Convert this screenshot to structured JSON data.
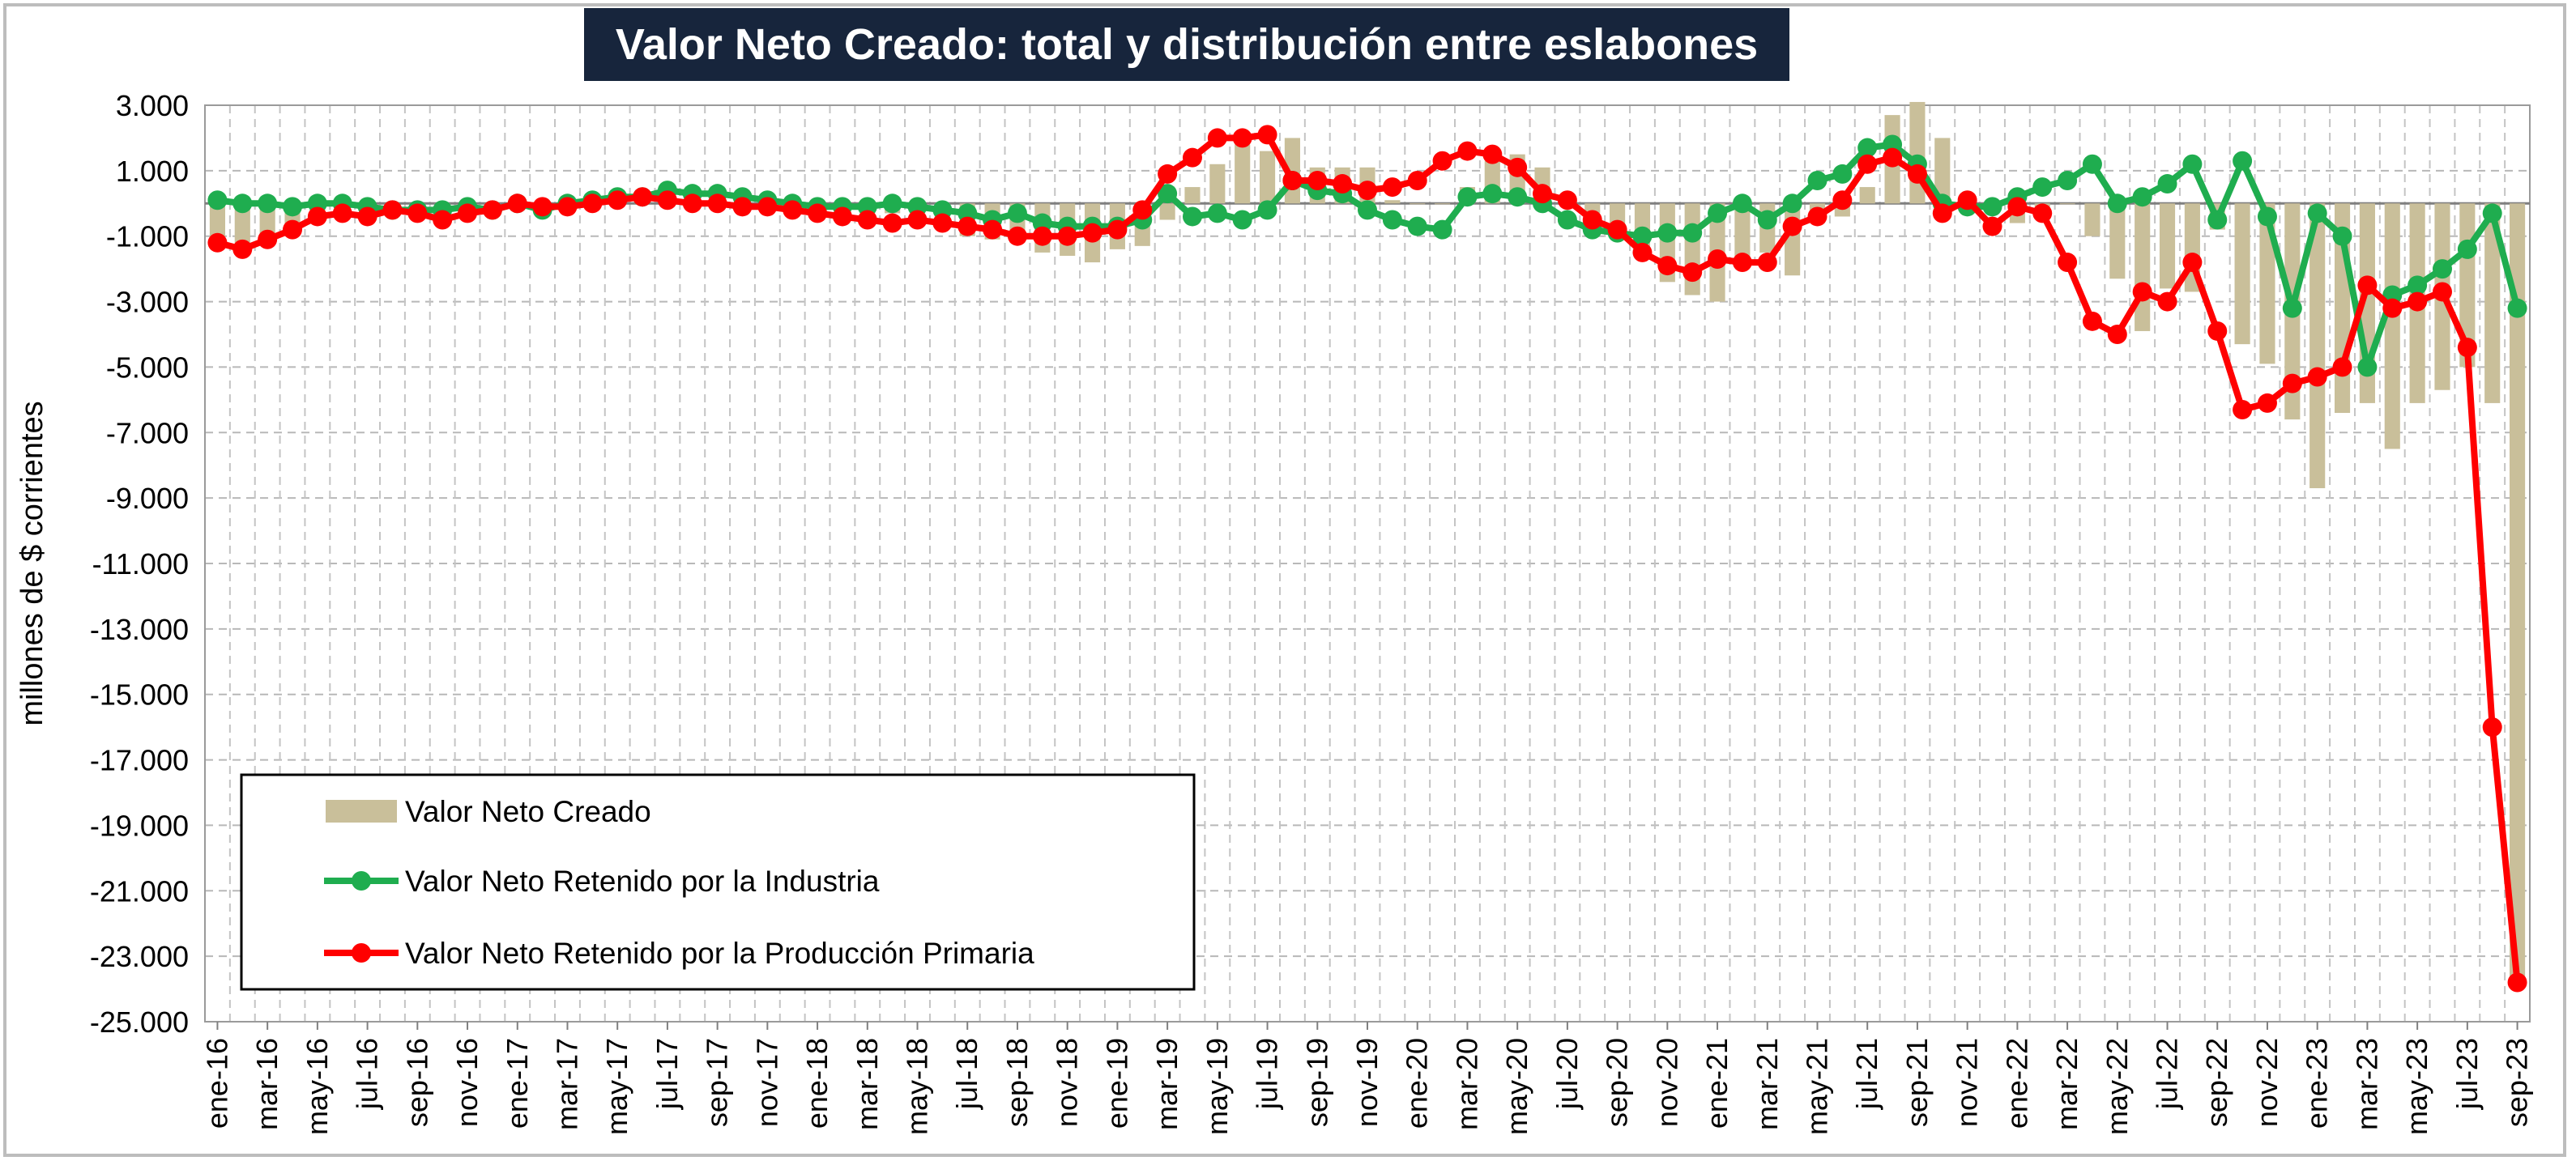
{
  "chart_data": {
    "type": "bar+line",
    "title": "Valor Neto Creado: total y distribución entre eslabones",
    "ylabel": "millones de $ corrientes",
    "ylim": [
      -25000,
      3000
    ],
    "yticks": [
      3000,
      1000,
      -1000,
      -3000,
      -5000,
      -7000,
      -9000,
      -11000,
      -13000,
      -15000,
      -17000,
      -19000,
      -21000,
      -23000,
      -25000
    ],
    "ytick_labels": [
      "3.000",
      "1.000",
      "-1.000",
      "-3.000",
      "-5.000",
      "-7.000",
      "-9.000",
      "-11.000",
      "-13.000",
      "-15.000",
      "-17.000",
      "-19.000",
      "-21.000",
      "-23.000",
      "-25.000"
    ],
    "grid": true,
    "legend_position": "bottom-left",
    "x": [
      "ene-16",
      "feb-16",
      "mar-16",
      "abr-16",
      "may-16",
      "jun-16",
      "jul-16",
      "ago-16",
      "sep-16",
      "oct-16",
      "nov-16",
      "dic-16",
      "ene-17",
      "feb-17",
      "mar-17",
      "abr-17",
      "may-17",
      "jun-17",
      "jul-17",
      "ago-17",
      "sep-17",
      "oct-17",
      "nov-17",
      "dic-17",
      "ene-18",
      "feb-18",
      "mar-18",
      "abr-18",
      "may-18",
      "jun-18",
      "jul-18",
      "ago-18",
      "sep-18",
      "oct-18",
      "nov-18",
      "dic-18",
      "ene-19",
      "feb-19",
      "mar-19",
      "abr-19",
      "may-19",
      "jun-19",
      "jul-19",
      "ago-19",
      "sep-19",
      "oct-19",
      "nov-19",
      "dic-19",
      "ene-20",
      "feb-20",
      "mar-20",
      "abr-20",
      "may-20",
      "jun-20",
      "jul-20",
      "ago-20",
      "sep-20",
      "oct-20",
      "nov-20",
      "dic-20",
      "ene-21",
      "feb-21",
      "mar-21",
      "abr-21",
      "may-21",
      "jun-21",
      "jul-21",
      "ago-21",
      "sep-21",
      "oct-21",
      "nov-21",
      "dic-21",
      "ene-22",
      "feb-22",
      "mar-22",
      "abr-22",
      "may-22",
      "jun-22",
      "jul-22",
      "ago-22",
      "sep-22",
      "oct-22",
      "nov-22",
      "dic-22",
      "ene-23",
      "feb-23",
      "mar-23",
      "abr-23",
      "may-23",
      "jun-23",
      "jul-23",
      "ago-23",
      "sep-23"
    ],
    "x_tick_labels": [
      "ene-16",
      "mar-16",
      "may-16",
      "jul-16",
      "sep-16",
      "nov-16",
      "ene-17",
      "mar-17",
      "may-17",
      "jul-17",
      "sep-17",
      "nov-17",
      "ene-18",
      "mar-18",
      "may-18",
      "jul-18",
      "sep-18",
      "nov-18",
      "ene-19",
      "mar-19",
      "may-19",
      "jul-19",
      "sep-19",
      "nov-19",
      "ene-20",
      "mar-20",
      "may-20",
      "jul-20",
      "sep-20",
      "nov-20",
      "ene-21",
      "mar-21",
      "may-21",
      "jul-21",
      "sep-21",
      "nov-21",
      "ene-22",
      "mar-22",
      "may-22",
      "jul-22",
      "sep-22",
      "nov-22",
      "ene-23",
      "mar-23",
      "may-23",
      "jul-23",
      "sep-23"
    ],
    "series": [
      {
        "name": "Valor Neto Creado",
        "type": "bar",
        "color": "#c9bf9a",
        "values": [
          -1100,
          -1400,
          -1100,
          -800,
          -400,
          -300,
          -400,
          -200,
          -300,
          -500,
          -200,
          -200,
          0,
          -100,
          0,
          100,
          200,
          200,
          300,
          200,
          200,
          100,
          0,
          -100,
          -200,
          -200,
          -300,
          -300,
          -300,
          -600,
          -1000,
          -1100,
          -1200,
          -1500,
          -1600,
          -1800,
          -1400,
          -1300,
          -500,
          500,
          1200,
          1800,
          1600,
          2000,
          1100,
          1100,
          1100,
          100,
          0,
          0,
          500,
          1300,
          1500,
          1100,
          200,
          -300,
          -1000,
          -1600,
          -2400,
          -2800,
          -3000,
          -1700,
          -1500,
          -2200,
          -600,
          -400,
          500,
          2700,
          3100,
          2000,
          -200,
          -200,
          -600,
          -100,
          0,
          -1000,
          -2300,
          -3900,
          -2600,
          -2700,
          -800,
          -4300,
          -4900,
          -6600,
          -8700,
          -6400,
          -6100,
          -7500,
          -6100,
          -5700,
          -5000,
          -6100,
          -23800
        ]
      },
      {
        "name": "Valor Neto Retenido por la Industria",
        "type": "line",
        "color": "#1fad4f",
        "values": [
          100,
          0,
          0,
          -100,
          0,
          0,
          -100,
          -200,
          -200,
          -200,
          -100,
          -200,
          0,
          -200,
          0,
          100,
          200,
          200,
          400,
          300,
          300,
          200,
          100,
          0,
          -100,
          -100,
          -100,
          0,
          -100,
          -200,
          -300,
          -500,
          -300,
          -600,
          -700,
          -700,
          -700,
          -500,
          300,
          -400,
          -300,
          -500,
          -200,
          700,
          400,
          300,
          -200,
          -500,
          -700,
          -800,
          200,
          300,
          200,
          0,
          -500,
          -800,
          -900,
          -1000,
          -900,
          -900,
          -300,
          0,
          -500,
          0,
          700,
          900,
          1700,
          1800,
          1200,
          0,
          -100,
          -100,
          200,
          500,
          700,
          1200,
          0,
          200,
          600,
          1200,
          -500,
          1300,
          -400,
          -3200,
          -300,
          -1000,
          -5000,
          -2800,
          -2500,
          -2000,
          -1400,
          -300,
          -3200
        ]
      },
      {
        "name": "Valor Neto Retenido por la Producción Primaria",
        "type": "line",
        "color": "#ff0000",
        "values": [
          -1200,
          -1400,
          -1100,
          -800,
          -400,
          -300,
          -400,
          -200,
          -300,
          -500,
          -300,
          -200,
          0,
          -100,
          -100,
          0,
          100,
          200,
          100,
          0,
          0,
          -100,
          -100,
          -200,
          -300,
          -400,
          -500,
          -600,
          -500,
          -600,
          -700,
          -800,
          -1000,
          -1000,
          -1000,
          -900,
          -800,
          -200,
          900,
          1400,
          2000,
          2000,
          2100,
          700,
          700,
          600,
          400,
          500,
          700,
          1300,
          1600,
          1500,
          1100,
          300,
          100,
          -500,
          -800,
          -1500,
          -1900,
          -2100,
          -1700,
          -1800,
          -1800,
          -700,
          -400,
          100,
          1200,
          1400,
          900,
          -300,
          100,
          -700,
          -100,
          -300,
          -1800,
          -3600,
          -4000,
          -2700,
          -3000,
          -1800,
          -3900,
          -6300,
          -6100,
          -5500,
          -5300,
          -5000,
          -2500,
          -3200,
          -3000,
          -2700,
          -4400,
          -16000,
          -23800
        ]
      }
    ]
  }
}
